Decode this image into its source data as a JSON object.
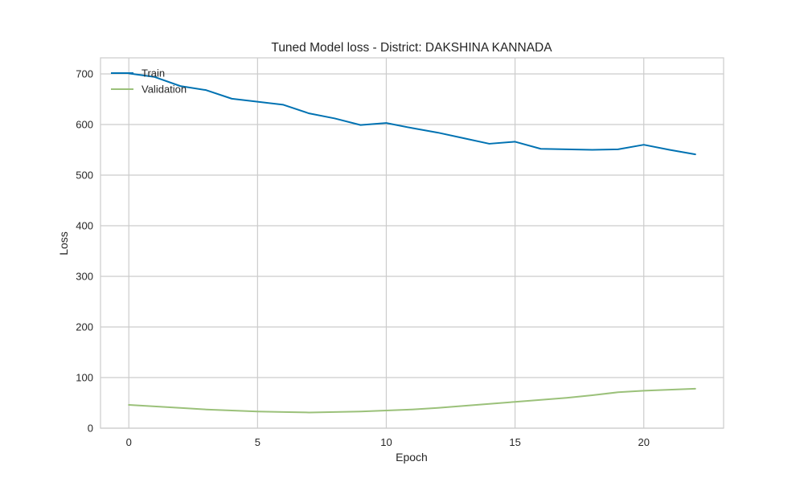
{
  "chart_data": {
    "type": "line",
    "title": "Tuned Model loss - District: DAKSHINA KANNADA",
    "xlabel": "Epoch",
    "ylabel": "Loss",
    "xlim": [
      -1.1,
      23.1
    ],
    "ylim": [
      0,
      700
    ],
    "xticks": [
      0,
      5,
      10,
      15,
      20
    ],
    "yticks": [
      0,
      100,
      200,
      300,
      400,
      500,
      600,
      700
    ],
    "grid": true,
    "legend_position": "upper-left",
    "x": [
      0,
      1,
      2,
      3,
      4,
      5,
      6,
      7,
      8,
      9,
      10,
      11,
      12,
      13,
      14,
      15,
      16,
      17,
      18,
      19,
      20,
      21,
      22
    ],
    "series": [
      {
        "name": "Train",
        "color": "#0072B2",
        "values": [
          701,
          694,
          676,
          668,
          651,
          645,
          639,
          622,
          612,
          599,
          603,
          593,
          584,
          573,
          562,
          566,
          552,
          551,
          550,
          551,
          560,
          550,
          541
        ]
      },
      {
        "name": "Validation",
        "color": "#9BC17A",
        "values": [
          46,
          43,
          40,
          37,
          35,
          33,
          32,
          31,
          32,
          33,
          35,
          37,
          40,
          44,
          48,
          52,
          56,
          60,
          65,
          71,
          74,
          76,
          78
        ]
      }
    ]
  }
}
